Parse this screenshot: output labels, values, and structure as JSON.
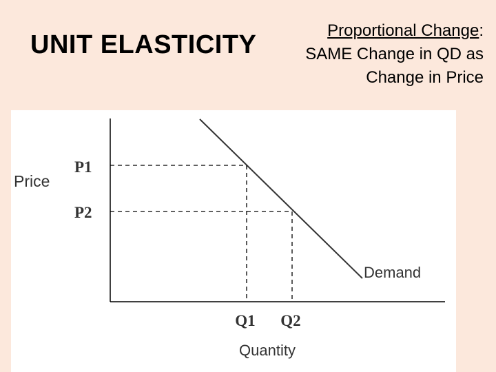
{
  "title": "UNIT ELASTICITY",
  "right_text": {
    "underlined": "Proportional Change",
    "colon": ":",
    "line2": "SAME Change in QD as",
    "line3": "Change in Price"
  },
  "diagram": {
    "y_axis_label": "Price",
    "x_axis_label": "Quantity",
    "curve_label": "Demand",
    "p1": "P1",
    "p2": "P2",
    "q1": "Q1",
    "q2": "Q2"
  }
}
